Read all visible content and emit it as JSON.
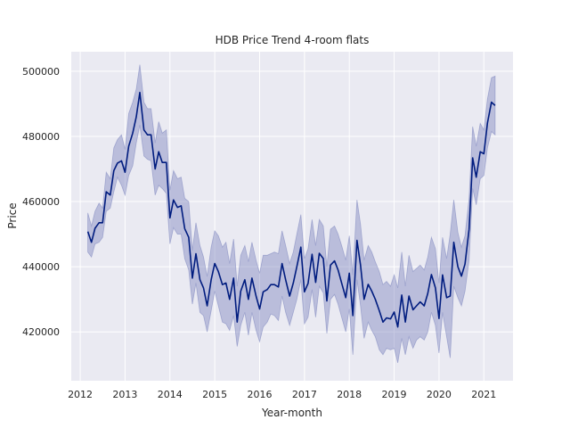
{
  "chart_data": {
    "type": "line",
    "title": "HDB Price Trend 4-room flats",
    "xlabel": "Year-month",
    "ylabel": "Price",
    "xlim": [
      2011.8,
      2021.65
    ],
    "ylim": [
      405000,
      506000
    ],
    "x_ticks": [
      2012,
      2013,
      2014,
      2015,
      2016,
      2017,
      2018,
      2019,
      2020,
      2021
    ],
    "x_tick_labels": [
      "2012",
      "2013",
      "2014",
      "2015",
      "2016",
      "2017",
      "2018",
      "2019",
      "2020",
      "2021"
    ],
    "y_ticks": [
      420000,
      440000,
      460000,
      480000,
      500000
    ],
    "y_tick_labels": [
      "420000",
      "440000",
      "460000",
      "480000",
      "500000"
    ],
    "grid": true,
    "colors": {
      "background": "#eaeaf2",
      "grid": "#ffffff",
      "line": "#001c7f",
      "band": "#8088bf"
    },
    "series": [
      {
        "x": [
          2012.17,
          2012.25,
          2012.33,
          2012.42,
          2012.5,
          2012.58,
          2012.67,
          2012.75,
          2012.83,
          2012.92,
          2013.0,
          2013.08,
          2013.17,
          2013.25,
          2013.33,
          2013.42,
          2013.5,
          2013.58,
          2013.67,
          2013.75,
          2013.83,
          2013.92,
          2014.0,
          2014.08,
          2014.17,
          2014.25,
          2014.33,
          2014.42,
          2014.5,
          2014.58,
          2014.67,
          2014.75,
          2014.83,
          2014.92,
          2015.0,
          2015.08,
          2015.17,
          2015.25,
          2015.33,
          2015.42,
          2015.5,
          2015.58,
          2015.67,
          2015.75,
          2015.83,
          2015.92,
          2016.0,
          2016.08,
          2016.17,
          2016.25,
          2016.33,
          2016.42,
          2016.5,
          2016.58,
          2016.67,
          2016.75,
          2016.83,
          2016.92,
          2017.0,
          2017.08,
          2017.17,
          2017.25,
          2017.33,
          2017.42,
          2017.5,
          2017.58,
          2017.67,
          2017.75,
          2017.83,
          2017.92,
          2018.0,
          2018.08,
          2018.17,
          2018.25,
          2018.33,
          2018.42,
          2018.5,
          2018.58,
          2018.67,
          2018.75,
          2018.83,
          2018.92,
          2019.0,
          2019.08,
          2019.17,
          2019.25,
          2019.33,
          2019.42,
          2019.5,
          2019.58,
          2019.67,
          2019.75,
          2019.83,
          2019.92,
          2020.0,
          2020.08,
          2020.17,
          2020.25,
          2020.33,
          2020.42,
          2020.5,
          2020.58,
          2020.67,
          2020.75,
          2020.83,
          2020.92,
          2021.0,
          2021.08,
          2021.17,
          2021.25
        ],
        "y": [
          450800,
          447500,
          451800,
          453500,
          453500,
          463000,
          462000,
          469500,
          471800,
          472500,
          469000,
          477000,
          481000,
          486000,
          493500,
          482000,
          480500,
          480500,
          470000,
          475300,
          472000,
          472000,
          455000,
          460500,
          458200,
          458700,
          451700,
          449000,
          436500,
          444000,
          436000,
          433500,
          428000,
          436000,
          441000,
          438500,
          434500,
          435000,
          430000,
          436500,
          423000,
          432500,
          436000,
          430000,
          436500,
          431000,
          427000,
          432300,
          433000,
          434500,
          434500,
          433800,
          441000,
          436000,
          431000,
          435000,
          440000,
          446000,
          432300,
          434900,
          443800,
          435200,
          444100,
          442500,
          429500,
          440500,
          441800,
          439000,
          435000,
          430500,
          438000,
          425000,
          448100,
          440500,
          430000,
          434600,
          432500,
          430000,
          426500,
          423000,
          424300,
          424000,
          426100,
          421500,
          431300,
          423000,
          431000,
          426800,
          428000,
          429200,
          428000,
          431800,
          437600,
          433500,
          424100,
          437500,
          430500,
          431000,
          447500,
          440000,
          437100,
          440800,
          451500,
          473400,
          467500,
          475300,
          474700,
          484100,
          490500,
          489500
        ],
        "lower": [
          444500,
          443000,
          447000,
          447500,
          449000,
          457000,
          458000,
          463000,
          467500,
          465000,
          462000,
          468000,
          471000,
          478000,
          483500,
          474000,
          473000,
          472500,
          462000,
          465000,
          464000,
          462500,
          447000,
          452000,
          450000,
          450000,
          442500,
          439000,
          428500,
          435000,
          426000,
          425000,
          420000,
          426500,
          432500,
          428000,
          423000,
          422500,
          420500,
          425000,
          415500,
          422000,
          426000,
          419000,
          426000,
          420500,
          417000,
          421500,
          423000,
          425500,
          425000,
          423500,
          431000,
          426000,
          422000,
          426000,
          430000,
          436000,
          422500,
          424500,
          433000,
          424500,
          434000,
          432000,
          419500,
          430000,
          431500,
          428500,
          424500,
          420000,
          427000,
          413000,
          436000,
          428000,
          418000,
          423000,
          420500,
          418500,
          414500,
          413000,
          415000,
          414500,
          415000,
          410500,
          418000,
          413000,
          418500,
          415000,
          417500,
          418500,
          417500,
          420000,
          426000,
          422000,
          413500,
          426000,
          418500,
          412000,
          434000,
          430500,
          428000,
          432500,
          442000,
          464000,
          459000,
          467000,
          468000,
          476500,
          481500,
          480500
        ],
        "upper": [
          456500,
          452500,
          457000,
          459500,
          458000,
          469000,
          467000,
          476500,
          479000,
          480500,
          476000,
          487000,
          490500,
          494500,
          502000,
          490500,
          488500,
          488500,
          478000,
          484500,
          481000,
          482000,
          463500,
          469500,
          467000,
          467500,
          461000,
          460000,
          445000,
          453500,
          446500,
          443000,
          437000,
          446000,
          451000,
          449500,
          446000,
          447500,
          441000,
          448500,
          434000,
          443500,
          446500,
          441500,
          447500,
          442000,
          438000,
          443500,
          443500,
          444000,
          444500,
          444000,
          451000,
          446500,
          441000,
          444500,
          450000,
          456000,
          442500,
          445500,
          454500,
          446500,
          454500,
          452500,
          440000,
          451500,
          452500,
          450000,
          446500,
          442000,
          449500,
          437500,
          460500,
          453000,
          442000,
          446500,
          444500,
          441500,
          438500,
          434500,
          435500,
          434000,
          437500,
          433500,
          444500,
          434000,
          443500,
          438500,
          439500,
          440500,
          439000,
          443000,
          449000,
          445500,
          435000,
          449000,
          442500,
          450000,
          460500,
          450500,
          446000,
          449500,
          461000,
          483000,
          477000,
          484000,
          482000,
          491500,
          498000,
          498500
        ]
      }
    ]
  }
}
